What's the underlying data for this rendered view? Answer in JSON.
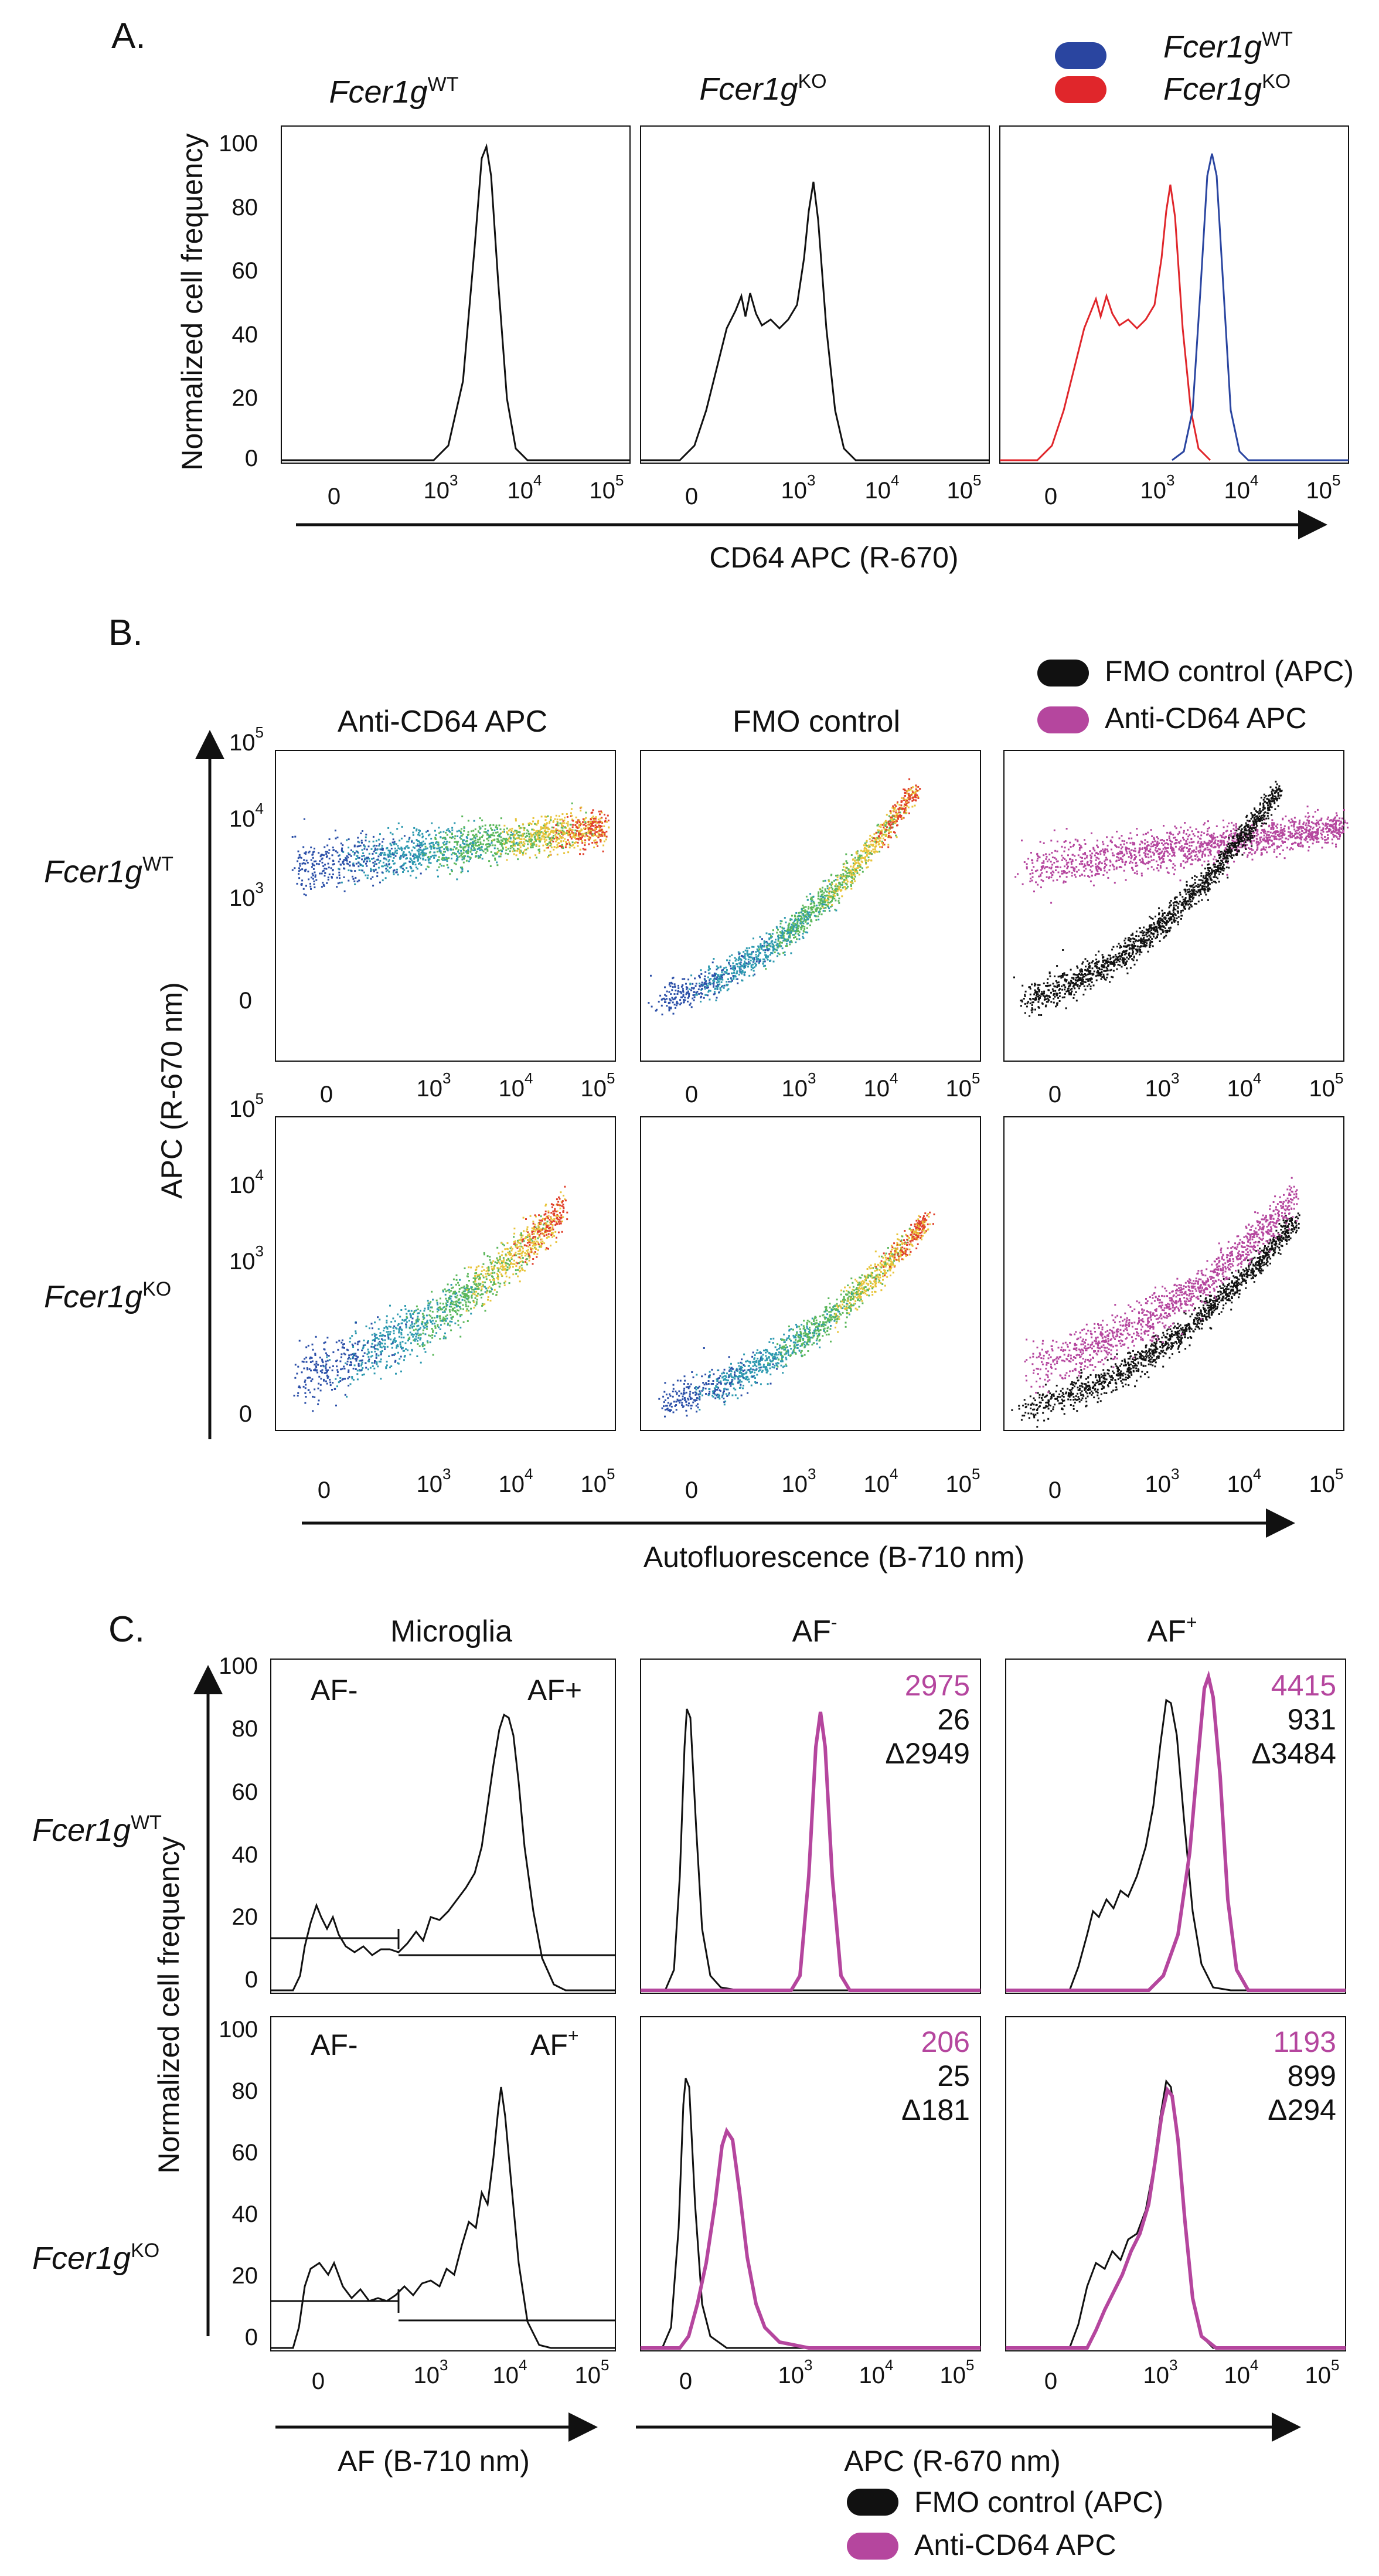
{
  "figure": {
    "panel_a": {
      "letter": "A.",
      "columns": [
        {
          "gene": "Fcer1g",
          "sup": "WT"
        },
        {
          "gene": "Fcer1g",
          "sup": "KO"
        },
        {
          "gene": "",
          "sup": ""
        }
      ],
      "legend": [
        {
          "gene": "Fcer1g",
          "sup": "WT",
          "color": "#2a45a0"
        },
        {
          "gene": "Fcer1g",
          "sup": "KO",
          "color": "#e0262b"
        }
      ],
      "ylabel": "Normalized cell frequency",
      "xlabel": "CD64 APC (R-670)",
      "y_ticks": [
        "100",
        "80",
        "60",
        "40",
        "20",
        "0"
      ]
    },
    "panel_b": {
      "letter": "B.",
      "columns": [
        "Anti-CD64 APC",
        "FMO control",
        ""
      ],
      "rows": [
        {
          "gene": "Fcer1g",
          "sup": "WT"
        },
        {
          "gene": "Fcer1g",
          "sup": "KO"
        }
      ],
      "legend": [
        {
          "label": "FMO control (APC)",
          "color": "#111111"
        },
        {
          "label": "Anti-CD64 APC",
          "color": "#b5469e"
        }
      ],
      "ylabel": "APC (R-670 nm)",
      "xlabel": "Autofluorescence (B-710 nm)",
      "y_ticks": [
        {
          "base": "10",
          "exp": "5"
        },
        {
          "base": "10",
          "exp": "4"
        },
        {
          "base": "10",
          "exp": "3"
        },
        {
          "base": "0",
          "exp": ""
        }
      ]
    },
    "panel_c": {
      "letter": "C.",
      "columns": [
        "Microglia",
        "AF",
        "AF"
      ],
      "column_sups": [
        "",
        "-",
        "+"
      ],
      "rows": [
        {
          "gene": "Fcer1g",
          "sup": "WT"
        },
        {
          "gene": "Fcer1g",
          "sup": "KO"
        }
      ],
      "gate_labels": {
        "wt_left": "AF-",
        "wt_right": "AF+",
        "ko_left": "AF-",
        "ko_right_base": "AF",
        "ko_right_sup": "+"
      },
      "stats": [
        {
          "top": "2975",
          "mid": "26",
          "delta": "Δ2949"
        },
        {
          "top": "4415",
          "mid": "931",
          "delta": "Δ3484"
        },
        {
          "top": "206",
          "mid": "25",
          "delta": "Δ181"
        },
        {
          "top": "1193",
          "mid": "899",
          "delta": "Δ294"
        }
      ],
      "ylabel": "Normalized cell frequency",
      "xlabel_left": "AF (B-710 nm)",
      "xlabel_right": "APC (R-670 nm)",
      "legend": [
        {
          "label": "FMO control (APC)",
          "color": "#111111"
        },
        {
          "label": "Anti-CD64 APC",
          "color": "#b5469e"
        }
      ],
      "y_ticks": [
        "100",
        "80",
        "60",
        "40",
        "20",
        "0"
      ]
    },
    "x_ticks": [
      {
        "base": "0",
        "exp": ""
      },
      {
        "base": "10",
        "exp": "3"
      },
      {
        "base": "10",
        "exp": "4"
      },
      {
        "base": "10",
        "exp": "5"
      }
    ]
  },
  "colors": {
    "wt_blue": "#2a45a0",
    "ko_red": "#e0262b",
    "anti_cd64_magenta": "#b5469e",
    "fmo_black": "#111111"
  }
}
